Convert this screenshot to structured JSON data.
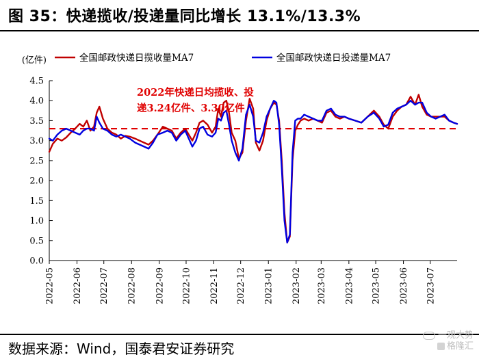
{
  "header": {
    "title": "图 35：快递揽收/投递量同比增长 13.1%/13.3%"
  },
  "footer": {
    "source": "数据来源：Wind，国泰君安证券研究"
  },
  "watermark": {
    "line1": "一观大势",
    "line2": "格隆汇"
  },
  "chart_data": {
    "type": "line",
    "ylabel": "(亿件)",
    "ylim": [
      0.0,
      4.5
    ],
    "yticks": [
      "0.0",
      "0.5",
      "1.0",
      "1.5",
      "2.0",
      "2.5",
      "3.0",
      "3.5",
      "4.0",
      "4.5"
    ],
    "xlim": [
      "2022-05-01",
      "2023-07-31"
    ],
    "xticks": [
      "2022-05",
      "2022-06",
      "2022-07",
      "2022-08",
      "2022-09",
      "2022-10",
      "2022-11",
      "2022-12",
      "2023-01",
      "2023-02",
      "2023-03",
      "2023-04",
      "2023-05",
      "2023-06",
      "2023-07"
    ],
    "grid": false,
    "legend_position": "top",
    "reference_line": {
      "value": 3.3,
      "style": "dashed",
      "color": "#e00000"
    },
    "annotation": {
      "line1": "2022年快递日均揽收、投",
      "line2": "递3.24亿件、3.30亿件"
    },
    "series": [
      {
        "name": "全国邮政快递日揽收量MA7",
        "color": "#c00000",
        "x": [
          "2022-05-01",
          "2022-05-05",
          "2022-05-10",
          "2022-05-15",
          "2022-05-20",
          "2022-05-25",
          "2022-05-30",
          "2022-06-04",
          "2022-06-08",
          "2022-06-12",
          "2022-06-16",
          "2022-06-20",
          "2022-06-23",
          "2022-06-26",
          "2022-06-30",
          "2022-07-05",
          "2022-07-10",
          "2022-07-15",
          "2022-07-20",
          "2022-07-25",
          "2022-07-30",
          "2022-08-05",
          "2022-08-10",
          "2022-08-15",
          "2022-08-20",
          "2022-08-25",
          "2022-08-30",
          "2022-09-05",
          "2022-09-10",
          "2022-09-15",
          "2022-09-20",
          "2022-09-25",
          "2022-09-30",
          "2022-10-04",
          "2022-10-08",
          "2022-10-12",
          "2022-10-16",
          "2022-10-20",
          "2022-10-25",
          "2022-10-30",
          "2022-11-03",
          "2022-11-06",
          "2022-11-09",
          "2022-11-12",
          "2022-11-15",
          "2022-11-18",
          "2022-11-21",
          "2022-11-25",
          "2022-11-29",
          "2022-12-03",
          "2022-12-07",
          "2022-12-11",
          "2022-12-15",
          "2022-12-18",
          "2022-12-22",
          "2022-12-26",
          "2022-12-30",
          "2023-01-03",
          "2023-01-07",
          "2023-01-10",
          "2023-01-13",
          "2023-01-16",
          "2023-01-19",
          "2023-01-22",
          "2023-01-25",
          "2023-01-28",
          "2023-01-31",
          "2023-02-03",
          "2023-02-06",
          "2023-02-10",
          "2023-02-15",
          "2023-02-20",
          "2023-02-25",
          "2023-03-02",
          "2023-03-07",
          "2023-03-12",
          "2023-03-17",
          "2023-03-22",
          "2023-03-27",
          "2023-04-01",
          "2023-04-08",
          "2023-04-15",
          "2023-04-22",
          "2023-04-29",
          "2023-05-05",
          "2023-05-10",
          "2023-05-15",
          "2023-05-20",
          "2023-05-25",
          "2023-05-30",
          "2023-06-04",
          "2023-06-09",
          "2023-06-14",
          "2023-06-18",
          "2023-06-22",
          "2023-06-27",
          "2023-07-02",
          "2023-07-07",
          "2023-07-12",
          "2023-07-17",
          "2023-07-22",
          "2023-07-27",
          "2023-07-31"
        ],
        "values": [
          2.72,
          2.92,
          3.05,
          3.0,
          3.08,
          3.2,
          3.3,
          3.42,
          3.35,
          3.5,
          3.25,
          3.35,
          3.7,
          3.85,
          3.55,
          3.3,
          3.2,
          3.15,
          3.05,
          3.12,
          3.1,
          3.05,
          3.0,
          2.95,
          2.9,
          3.0,
          3.15,
          3.35,
          3.3,
          3.25,
          3.05,
          3.2,
          3.3,
          3.15,
          3.0,
          3.2,
          3.45,
          3.5,
          3.4,
          3.2,
          3.35,
          3.8,
          3.6,
          3.95,
          4.0,
          3.7,
          3.2,
          3.0,
          2.55,
          2.7,
          3.5,
          4.05,
          3.8,
          2.95,
          2.75,
          3.0,
          3.5,
          3.8,
          3.95,
          3.9,
          3.5,
          2.5,
          1.2,
          0.45,
          0.6,
          2.5,
          3.25,
          3.4,
          3.5,
          3.55,
          3.5,
          3.55,
          3.5,
          3.45,
          3.7,
          3.75,
          3.6,
          3.55,
          3.6,
          3.55,
          3.5,
          3.45,
          3.6,
          3.75,
          3.6,
          3.4,
          3.3,
          3.6,
          3.75,
          3.85,
          3.9,
          4.1,
          3.9,
          4.15,
          3.85,
          3.65,
          3.6,
          3.6,
          3.6,
          3.6,
          3.5,
          3.45,
          3.42
        ]
      },
      {
        "name": "全国邮政快递日投递量MA7",
        "color": "#0000e0",
        "x": [
          "2022-05-01",
          "2022-05-05",
          "2022-05-10",
          "2022-05-15",
          "2022-05-20",
          "2022-05-25",
          "2022-05-30",
          "2022-06-04",
          "2022-06-08",
          "2022-06-12",
          "2022-06-16",
          "2022-06-20",
          "2022-06-23",
          "2022-06-26",
          "2022-06-30",
          "2022-07-05",
          "2022-07-10",
          "2022-07-15",
          "2022-07-20",
          "2022-07-25",
          "2022-07-30",
          "2022-08-05",
          "2022-08-10",
          "2022-08-15",
          "2022-08-20",
          "2022-08-25",
          "2022-08-30",
          "2022-09-05",
          "2022-09-10",
          "2022-09-15",
          "2022-09-20",
          "2022-09-25",
          "2022-09-30",
          "2022-10-04",
          "2022-10-08",
          "2022-10-12",
          "2022-10-16",
          "2022-10-20",
          "2022-10-25",
          "2022-10-30",
          "2022-11-03",
          "2022-11-06",
          "2022-11-09",
          "2022-11-12",
          "2022-11-15",
          "2022-11-18",
          "2022-11-21",
          "2022-11-25",
          "2022-11-29",
          "2022-12-03",
          "2022-12-07",
          "2022-12-11",
          "2022-12-15",
          "2022-12-18",
          "2022-12-22",
          "2022-12-26",
          "2022-12-30",
          "2023-01-03",
          "2023-01-07",
          "2023-01-10",
          "2023-01-13",
          "2023-01-16",
          "2023-01-19",
          "2023-01-22",
          "2023-01-25",
          "2023-01-28",
          "2023-01-31",
          "2023-02-03",
          "2023-02-06",
          "2023-02-10",
          "2023-02-15",
          "2023-02-20",
          "2023-02-25",
          "2023-03-02",
          "2023-03-07",
          "2023-03-12",
          "2023-03-17",
          "2023-03-22",
          "2023-03-27",
          "2023-04-01",
          "2023-04-08",
          "2023-04-15",
          "2023-04-22",
          "2023-04-29",
          "2023-05-05",
          "2023-05-10",
          "2023-05-15",
          "2023-05-20",
          "2023-05-25",
          "2023-05-30",
          "2023-06-04",
          "2023-06-09",
          "2023-06-14",
          "2023-06-18",
          "2023-06-22",
          "2023-06-27",
          "2023-07-02",
          "2023-07-07",
          "2023-07-12",
          "2023-07-17",
          "2023-07-22",
          "2023-07-27",
          "2023-07-31"
        ],
        "values": [
          3.05,
          3.0,
          3.15,
          3.25,
          3.3,
          3.25,
          3.2,
          3.15,
          3.25,
          3.3,
          3.3,
          3.25,
          3.6,
          3.45,
          3.3,
          3.25,
          3.15,
          3.1,
          3.15,
          3.1,
          3.05,
          2.95,
          2.9,
          2.85,
          2.8,
          2.95,
          3.15,
          3.2,
          3.25,
          3.2,
          3.0,
          3.15,
          3.25,
          3.05,
          2.85,
          3.0,
          3.3,
          3.35,
          3.15,
          3.1,
          3.2,
          3.55,
          3.5,
          3.7,
          3.75,
          3.4,
          3.0,
          2.7,
          2.5,
          2.8,
          3.65,
          3.9,
          3.6,
          3.0,
          2.95,
          3.2,
          3.6,
          3.8,
          4.0,
          3.95,
          3.4,
          2.3,
          1.0,
          0.45,
          0.65,
          2.7,
          3.5,
          3.55,
          3.55,
          3.65,
          3.6,
          3.55,
          3.5,
          3.5,
          3.75,
          3.8,
          3.65,
          3.6,
          3.6,
          3.55,
          3.5,
          3.45,
          3.6,
          3.7,
          3.55,
          3.35,
          3.4,
          3.7,
          3.8,
          3.85,
          3.9,
          4.0,
          3.9,
          3.95,
          3.95,
          3.7,
          3.6,
          3.55,
          3.6,
          3.65,
          3.5,
          3.45,
          3.42
        ]
      }
    ]
  }
}
